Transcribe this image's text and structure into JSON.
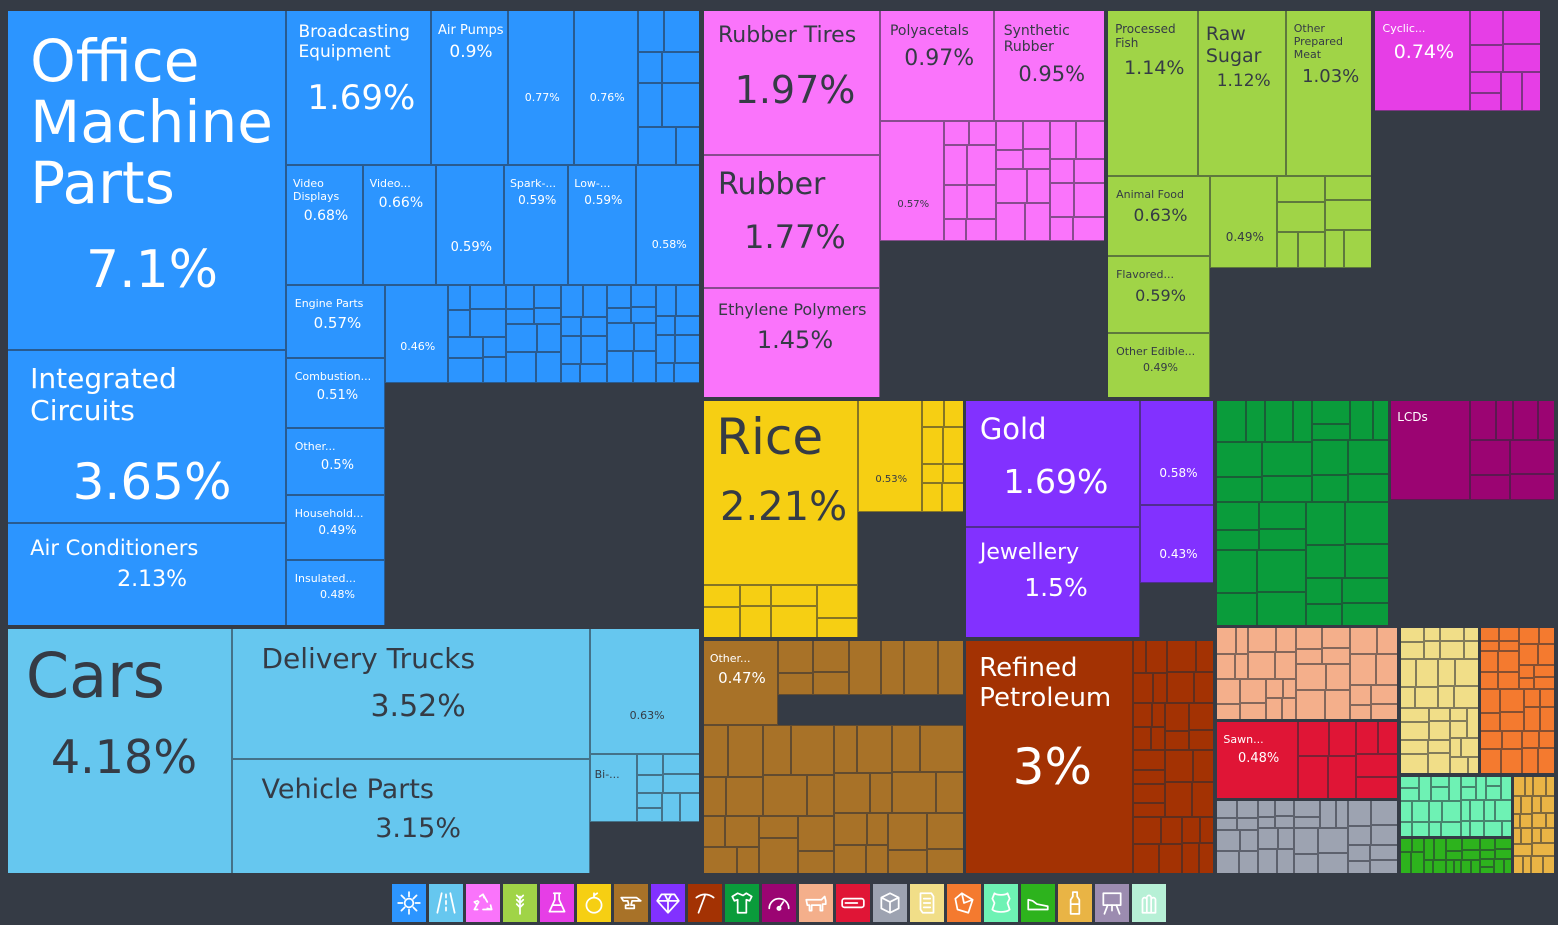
{
  "chart_data": {
    "type": "treemap",
    "unit": "%",
    "sectors": [
      {
        "name": "Machines",
        "color": "#2c95ff",
        "items": [
          {
            "label": "Office Machine Parts",
            "value": 7.1
          },
          {
            "label": "Integrated Circuits",
            "value": 3.65
          },
          {
            "label": "Air Conditioners",
            "value": 2.13
          },
          {
            "label": "Broadcasting Equipment",
            "value": 1.69
          },
          {
            "label": "Air Pumps",
            "value": 0.9
          },
          {
            "label": "",
            "value": 0.77
          },
          {
            "label": "",
            "value": 0.76
          },
          {
            "label": "Video Displays",
            "value": 0.68
          },
          {
            "label": "Video...",
            "value": 0.66
          },
          {
            "label": "",
            "value": 0.59
          },
          {
            "label": "Spark-...",
            "value": 0.59
          },
          {
            "label": "Low-...",
            "value": 0.59
          },
          {
            "label": "",
            "value": 0.58
          },
          {
            "label": "Engine Parts",
            "value": 0.57
          },
          {
            "label": "Combustion...",
            "value": 0.51
          },
          {
            "label": "Other...",
            "value": 0.5
          },
          {
            "label": "Household...",
            "value": 0.49
          },
          {
            "label": "Insulated...",
            "value": 0.48
          },
          {
            "label": "",
            "value": 0.46
          }
        ]
      },
      {
        "name": "Transportation",
        "color": "#66c7ef",
        "items": [
          {
            "label": "Cars",
            "value": 4.18
          },
          {
            "label": "Delivery Trucks",
            "value": 3.52
          },
          {
            "label": "Vehicle Parts",
            "value": 3.15
          },
          {
            "label": "",
            "value": 0.63
          },
          {
            "label": "Bi-...",
            "value": null
          }
        ]
      },
      {
        "name": "Plastics and Rubbers",
        "color": "#fa74fb",
        "items": [
          {
            "label": "Rubber Tires",
            "value": 1.97
          },
          {
            "label": "Rubber",
            "value": 1.77
          },
          {
            "label": "Ethylene Polymers",
            "value": 1.45
          },
          {
            "label": "Polyacetals",
            "value": 0.97
          },
          {
            "label": "Synthetic Rubber",
            "value": 0.95
          },
          {
            "label": "",
            "value": 0.57
          }
        ]
      },
      {
        "name": "Foodstuffs",
        "color": "#a0d447",
        "items": [
          {
            "label": "Processed Fish",
            "value": 1.14
          },
          {
            "label": "Raw Sugar",
            "value": 1.12
          },
          {
            "label": "Other Prepared Meat",
            "value": 1.03
          },
          {
            "label": "Animal Food",
            "value": 0.63
          },
          {
            "label": "",
            "value": 0.49
          },
          {
            "label": "Flavored...",
            "value": 0.59
          },
          {
            "label": "Other Edible...",
            "value": 0.49
          }
        ]
      },
      {
        "name": "Chemical Products",
        "color": "#e63ee6",
        "items": [
          {
            "label": "Cyclic...",
            "value": 0.74
          }
        ]
      },
      {
        "name": "Vegetable Products",
        "color": "#f6cf13",
        "items": [
          {
            "label": "Rice",
            "value": 2.21
          },
          {
            "label": "",
            "value": 0.53
          }
        ]
      },
      {
        "name": "Precious Metals",
        "color": "#8231ff",
        "items": [
          {
            "label": "Gold",
            "value": 1.69
          },
          {
            "label": "Jewellery",
            "value": 1.5
          },
          {
            "label": "",
            "value": 0.58
          },
          {
            "label": "",
            "value": 0.43
          }
        ]
      },
      {
        "name": "Metals",
        "color": "#a87228",
        "items": [
          {
            "label": "Other...",
            "value": 0.47
          }
        ]
      },
      {
        "name": "Mineral Products",
        "color": "#a33203",
        "items": [
          {
            "label": "Refined Petroleum",
            "value": 3
          }
        ]
      },
      {
        "name": "Textiles",
        "color": "#0a9c3b",
        "items": []
      },
      {
        "name": "Instruments",
        "color": "#9b0472",
        "items": [
          {
            "label": "LCDs",
            "value": null
          }
        ]
      },
      {
        "name": "Animal Hides",
        "color": "#f4af8b",
        "items": []
      },
      {
        "name": "Wood Products",
        "color": "#e01536",
        "items": [
          {
            "label": "Sawn...",
            "value": 0.48
          }
        ]
      },
      {
        "name": "Stone and Glass",
        "color": "#9da3b1",
        "items": []
      },
      {
        "name": "Paper Goods",
        "color": "#f1de88",
        "items": []
      },
      {
        "name": "Weapons / Misc",
        "color": "#f47a2f",
        "items": []
      },
      {
        "name": "Animal Products",
        "color": "#6ef2b4",
        "items": []
      },
      {
        "name": "Footwear and Headwear",
        "color": "#2db31d",
        "items": []
      },
      {
        "name": "Miscellaneous",
        "color": "#e9b445",
        "items": []
      }
    ],
    "legend": [
      {
        "icon": "gear-icon",
        "color": "#2c95ff"
      },
      {
        "icon": "road-icon",
        "color": "#66c7ef"
      },
      {
        "icon": "recycle-icon",
        "color": "#fa74fb"
      },
      {
        "icon": "wheat-icon",
        "color": "#a0d447"
      },
      {
        "icon": "flask-icon",
        "color": "#e63ee6"
      },
      {
        "icon": "fruit-icon",
        "color": "#f6cf13"
      },
      {
        "icon": "anvil-icon",
        "color": "#a87228"
      },
      {
        "icon": "diamond-icon",
        "color": "#8231ff"
      },
      {
        "icon": "pickaxe-icon",
        "color": "#a33203"
      },
      {
        "icon": "shirt-icon",
        "color": "#0a9c3b"
      },
      {
        "icon": "gauge-icon",
        "color": "#9b0472"
      },
      {
        "icon": "animal-icon",
        "color": "#f4af8b"
      },
      {
        "icon": "saw-icon",
        "color": "#e01536"
      },
      {
        "icon": "box-icon",
        "color": "#9da3b1"
      },
      {
        "icon": "scroll-icon",
        "color": "#f1de88"
      },
      {
        "icon": "shield-icon",
        "color": "#f47a2f"
      },
      {
        "icon": "hide-icon",
        "color": "#6ef2b4"
      },
      {
        "icon": "shoe-icon",
        "color": "#2db31d"
      },
      {
        "icon": "bottle-icon",
        "color": "#e9b445"
      },
      {
        "icon": "easel-icon",
        "color": "#9c8cb0"
      },
      {
        "icon": "bullets-icon",
        "color": "#b7f0d6"
      }
    ]
  }
}
